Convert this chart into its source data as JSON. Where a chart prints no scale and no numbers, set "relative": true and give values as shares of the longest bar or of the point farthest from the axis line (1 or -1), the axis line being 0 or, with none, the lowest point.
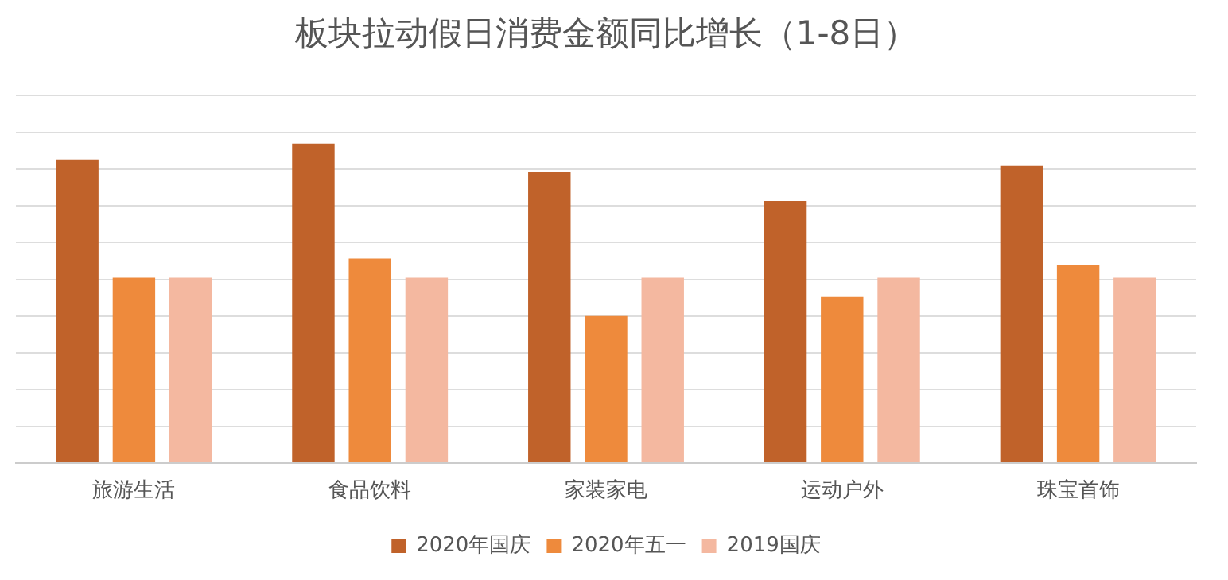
{
  "chart_data": {
    "type": "bar",
    "title": "板块拉动假日消费金额同比增长（1-8日）",
    "categories": [
      "旅游生活",
      "食品饮料",
      "家装家电",
      "运动户外",
      "珠宝首饰"
    ],
    "relative": true,
    "grid": "y",
    "legend": "bottom",
    "series": [
      {
        "name": "2020年国庆",
        "color": "#c0622a",
        "values": [
          0.95,
          1,
          0.91,
          0.82,
          0.93
        ]
      },
      {
        "name": "2020年五一",
        "color": "#ee8a3c",
        "values": [
          0.58,
          0.64,
          0.46,
          0.52,
          0.62
        ]
      },
      {
        "name": "2019国庆",
        "color": "#f4b8a0",
        "values": [
          0.58,
          0.58,
          0.58,
          0.58,
          0.58
        ]
      }
    ]
  }
}
